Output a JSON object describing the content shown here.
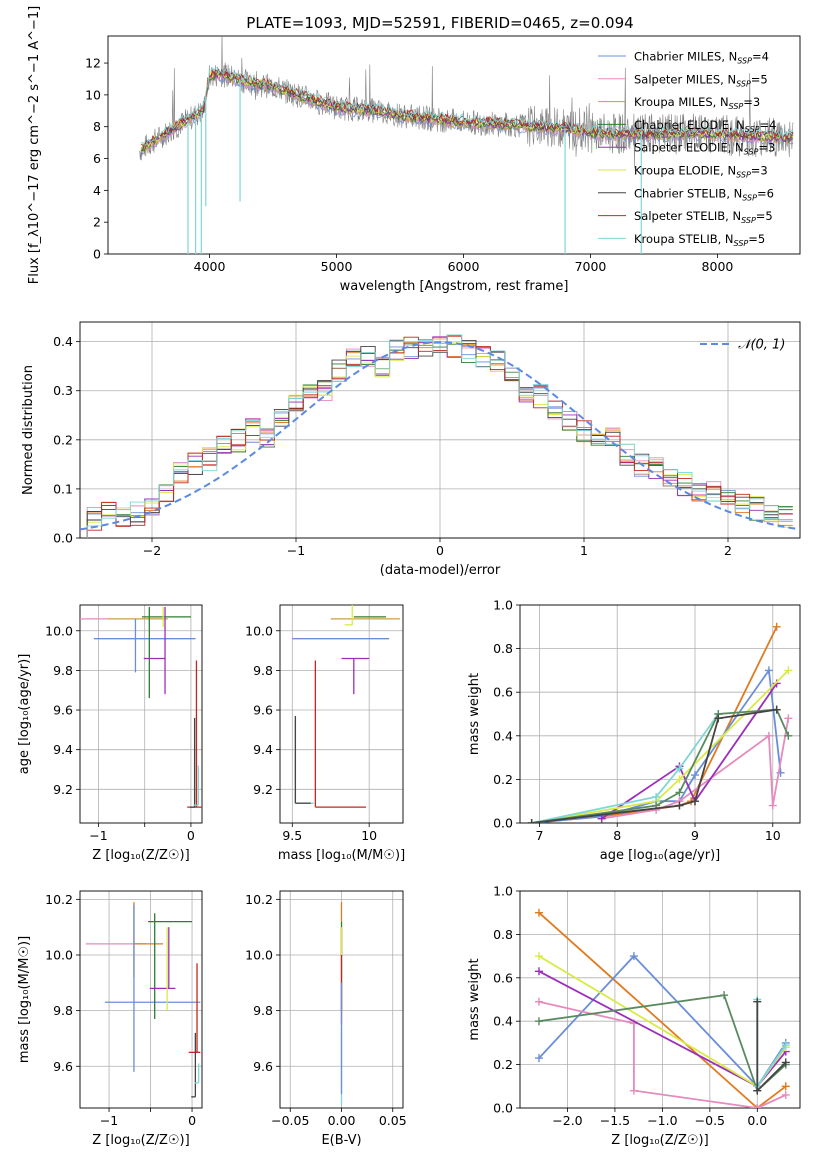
{
  "title": "PLATE=1093, MJD=52591, FIBERID=0465, z=0.094",
  "colors": {
    "chabrier_miles": "#6a8fd8",
    "salpeter_miles": "#e58bbd",
    "kroupa_miles": "#c8a13a",
    "chabrier_elodie": "#2e7d32",
    "salpeter_elodie": "#9b2fb8",
    "kroupa_elodie": "#d9ea44",
    "chabrier_stelib": "#444444",
    "salpeter_stelib": "#c0281e",
    "kroupa_stelib": "#7fd6d6",
    "data": "#808080",
    "orange_line": "#e07b20",
    "sage_line": "#5a8a5f"
  },
  "chart_data": [
    {
      "id": "spectrum",
      "type": "line",
      "xlabel": "wavelength [Angstrom, rest frame]",
      "ylabel": "Flux [f_λ10^−17 erg cm^−2 s^−1 A^−1]",
      "xlim": [
        3200,
        8650
      ],
      "ylim": [
        0,
        13.7
      ],
      "xticks": [
        4000,
        5000,
        6000,
        7000,
        8000
      ],
      "yticks": [
        0,
        2,
        4,
        6,
        8,
        10,
        12
      ],
      "legend_position": "top-right",
      "legend": [
        {
          "label": "Chabrier MILES, N",
          "sub": "SSP",
          "n": "=4",
          "color": "#6a8fd8"
        },
        {
          "label": "Salpeter MILES, N",
          "sub": "SSP",
          "n": "=5",
          "color": "#e58bbd"
        },
        {
          "label": "Kroupa MILES, N",
          "sub": "SSP",
          "n": "=3",
          "color": "#c8a13a"
        },
        {
          "label": "Chabrier ELODIE, N",
          "sub": "SSP",
          "n": "=4",
          "color": "#2e7d32"
        },
        {
          "label": "Salpeter ELODIE, N",
          "sub": "SSP",
          "n": "=3",
          "color": "#9b2fb8"
        },
        {
          "label": "Kroupa ELODIE, N",
          "sub": "SSP",
          "n": "=3",
          "color": "#d9ea44"
        },
        {
          "label": "Chabrier STELIB, N",
          "sub": "SSP",
          "n": "=6",
          "color": "#444444"
        },
        {
          "label": "Salpeter STELIB, N",
          "sub": "SSP",
          "n": "=5",
          "color": "#c0281e"
        },
        {
          "label": "Kroupa STELIB, N",
          "sub": "SSP",
          "n": "=5",
          "color": "#7fd6d6"
        }
      ],
      "continuum": {
        "wavelength": [
          3450,
          3600,
          3800,
          3950,
          4000,
          4100,
          4300,
          4500,
          4800,
          5000,
          5300,
          5600,
          6000,
          6400,
          6800,
          7000,
          7400,
          7800,
          8200,
          8600
        ],
        "flux": [
          6.5,
          7.3,
          8.3,
          9.0,
          11.2,
          11.3,
          10.8,
          10.5,
          9.7,
          9.2,
          9.0,
          8.6,
          8.3,
          8.1,
          7.9,
          7.6,
          7.5,
          7.6,
          7.4,
          7.3
        ]
      },
      "absorption_features": [
        {
          "wavelength": 3830,
          "depth_to": 0
        },
        {
          "wavelength": 3890,
          "depth_to": 0
        },
        {
          "wavelength": 3935,
          "depth_to": 0
        },
        {
          "wavelength": 4240,
          "depth_to": 3.3
        },
        {
          "wavelength": 3970,
          "depth_to": 3.0
        },
        {
          "wavelength": 6800,
          "depth_to": 0
        },
        {
          "wavelength": 7400,
          "depth_to": 0
        }
      ]
    },
    {
      "id": "residuals",
      "type": "bar",
      "xlabel": "(data-model)/error",
      "ylabel": "Normed distribution",
      "xlim": [
        -2.5,
        2.5
      ],
      "ylim": [
        0,
        0.44
      ],
      "xticks": [
        -2,
        -1,
        0,
        1,
        2
      ],
      "yticks": [
        0.0,
        0.1,
        0.2,
        0.3,
        0.4
      ],
      "grid": true,
      "legend_position": "top-right",
      "legend_label": "𝒩(0, 1)",
      "gaussian": {
        "mean": 0,
        "sigma": 1
      },
      "bins": [
        -2.4,
        -2.3,
        -2.2,
        -2.1,
        -2.0,
        -1.9,
        -1.8,
        -1.7,
        -1.6,
        -1.5,
        -1.4,
        -1.3,
        -1.2,
        -1.1,
        -1.0,
        -0.9,
        -0.8,
        -0.7,
        -0.6,
        -0.5,
        -0.4,
        -0.3,
        -0.2,
        -0.1,
        0.0,
        0.1,
        0.2,
        0.3,
        0.4,
        0.5,
        0.6,
        0.7,
        0.8,
        0.9,
        1.0,
        1.1,
        1.2,
        1.3,
        1.4,
        1.5,
        1.6,
        1.7,
        1.8,
        1.9,
        2.0,
        2.1,
        2.2,
        2.3,
        2.4
      ],
      "envelope": [
        0.04,
        0.05,
        0.04,
        0.05,
        0.07,
        0.09,
        0.13,
        0.15,
        0.16,
        0.19,
        0.2,
        0.22,
        0.2,
        0.25,
        0.27,
        0.29,
        0.3,
        0.34,
        0.36,
        0.37,
        0.35,
        0.38,
        0.39,
        0.38,
        0.4,
        0.39,
        0.38,
        0.37,
        0.36,
        0.34,
        0.3,
        0.29,
        0.26,
        0.24,
        0.22,
        0.2,
        0.2,
        0.17,
        0.15,
        0.14,
        0.13,
        0.11,
        0.1,
        0.09,
        0.08,
        0.07,
        0.06,
        0.05,
        0.04
      ]
    },
    {
      "id": "age-vs-Z",
      "type": "scatter",
      "xlabel": "Z [log₁₀(Z/Z☉)]",
      "ylabel": "age  [log₁₀(age/yr)]",
      "xlim": [
        -1.2,
        0.12
      ],
      "ylim": [
        9.03,
        10.13
      ],
      "xticks": [
        -1,
        -0.5,
        0
      ],
      "xticklabels": [
        "−1",
        "",
        "0"
      ],
      "yticks": [
        9.2,
        9.4,
        9.6,
        9.8,
        10.0
      ],
      "grid": true,
      "points": [
        {
          "x": -0.95,
          "y": 10.06,
          "xerr": [
            0.33,
            0.05
          ],
          "yerr": [
            0.0,
            0.0
          ],
          "color": "#e58bbd"
        },
        {
          "x": -0.55,
          "y": 10.06,
          "xerr": [
            0.35,
            0.3
          ],
          "yerr": [
            0.0,
            0.0
          ],
          "color": "#c8a13a"
        },
        {
          "x": -0.6,
          "y": 9.96,
          "xerr": [
            0.45,
            0.65
          ],
          "yerr": [
            0.17,
            0.1
          ],
          "color": "#6a8fd8"
        },
        {
          "x": -0.45,
          "y": 10.07,
          "xerr": [
            0.08,
            0.45
          ],
          "yerr": [
            0.41,
            0.05
          ],
          "color": "#2e7d32"
        },
        {
          "x": -0.28,
          "y": 9.86,
          "xerr": [
            0.23,
            0.0
          ],
          "yerr": [
            0.18,
            0.26
          ],
          "color": "#9b2fb8"
        },
        {
          "x": -0.3,
          "y": 10.02,
          "xerr": [
            0.0,
            0.0
          ],
          "yerr": [
            0.0,
            0.1
          ],
          "color": "#d9ea44"
        },
        {
          "x": 0.06,
          "y": 9.11,
          "xerr": [
            0.1,
            0.08
          ],
          "yerr": [
            0.0,
            0.74
          ],
          "color": "#c0281e"
        },
        {
          "x": 0.04,
          "y": 9.11,
          "xerr": [
            0.05,
            0.0
          ],
          "yerr": [
            0.0,
            0.45
          ],
          "color": "#444444"
        },
        {
          "x": 0.08,
          "y": 9.12,
          "xerr": [
            0.05,
            0.0
          ],
          "yerr": [
            0.0,
            0.2
          ],
          "color": "#7fd6d6"
        }
      ]
    },
    {
      "id": "age-vs-mass",
      "type": "scatter",
      "xlabel": "mass [log₁₀(M/M☉)]",
      "ylabel": "",
      "xlim": [
        9.42,
        10.22
      ],
      "ylim": [
        9.03,
        10.13
      ],
      "xticks": [
        9.5,
        10.0
      ],
      "yticks": [
        9.2,
        9.4,
        9.6,
        9.8,
        10.0
      ],
      "grid": true,
      "points": [
        {
          "x": 10.05,
          "y": 10.06,
          "xerr": [
            0.3,
            0.15
          ],
          "yerr": [
            0.0,
            0.0
          ],
          "color": "#c8a13a"
        },
        {
          "x": 9.95,
          "y": 9.96,
          "xerr": [
            0.45,
            0.18
          ],
          "yerr": [
            0.0,
            0.0
          ],
          "color": "#6a8fd8"
        },
        {
          "x": 10.02,
          "y": 10.07,
          "xerr": [
            0.12,
            0.09
          ],
          "yerr": [
            0.0,
            0.0
          ],
          "color": "#2e7d32"
        },
        {
          "x": 9.9,
          "y": 9.86,
          "xerr": [
            0.08,
            0.1
          ],
          "yerr": [
            0.18,
            0.0
          ],
          "color": "#9b2fb8"
        },
        {
          "x": 9.89,
          "y": 10.03,
          "xerr": [
            0.05,
            0.0
          ],
          "yerr": [
            0.0,
            0.1
          ],
          "color": "#d9ea44"
        },
        {
          "x": 9.65,
          "y": 9.11,
          "xerr": [
            0.0,
            0.33
          ],
          "yerr": [
            0.0,
            0.74
          ],
          "color": "#c0281e"
        },
        {
          "x": 9.52,
          "y": 9.13,
          "xerr": [
            0.0,
            0.12
          ],
          "yerr": [
            0.0,
            0.42
          ],
          "color": "#7fd6d6"
        },
        {
          "x": 9.52,
          "y": 9.13,
          "xerr": [
            0.0,
            0.1
          ],
          "yerr": [
            0.0,
            0.44
          ],
          "color": "#444444"
        }
      ]
    },
    {
      "id": "weight-vs-age",
      "type": "line",
      "xlabel": "age  [log₁₀(age/yr)]",
      "ylabel": "mass weight",
      "xlim": [
        6.75,
        10.35
      ],
      "ylim": [
        0,
        1
      ],
      "xticks": [
        7,
        8,
        9,
        10
      ],
      "yticks": [
        0.0,
        0.2,
        0.4,
        0.6,
        0.8,
        1.0
      ],
      "grid": true,
      "series": [
        {
          "color": "#e07b20",
          "x": [
            6.9,
            7.8,
            8.8,
            8.95,
            10.05
          ],
          "y": [
            0.0,
            0.03,
            0.08,
            0.1,
            0.9
          ]
        },
        {
          "color": "#6a8fd8",
          "x": [
            6.9,
            7.8,
            8.5,
            8.8,
            9.0,
            9.95,
            10.1
          ],
          "y": [
            0.0,
            0.03,
            0.1,
            0.1,
            0.22,
            0.7,
            0.23
          ]
        },
        {
          "color": "#e58bbd",
          "x": [
            7.8,
            8.5,
            8.8,
            9.95,
            10.0,
            10.2
          ],
          "y": [
            0.02,
            0.06,
            0.1,
            0.4,
            0.08,
            0.48
          ]
        },
        {
          "color": "#9b2fb8",
          "x": [
            7.8,
            8.8,
            9.0,
            10.05
          ],
          "y": [
            0.02,
            0.26,
            0.1,
            0.64
          ]
        },
        {
          "color": "#d9ea44",
          "x": [
            6.9,
            8.5,
            8.8,
            10.2
          ],
          "y": [
            0.0,
            0.1,
            0.2,
            0.7
          ]
        },
        {
          "color": "#7fd6d6",
          "x": [
            6.9,
            8.5,
            8.8,
            9.3
          ],
          "y": [
            0.0,
            0.12,
            0.25,
            0.5
          ]
        },
        {
          "color": "#5a8a5f",
          "x": [
            6.9,
            8.5,
            8.8,
            9.3,
            10.05,
            10.2
          ],
          "y": [
            0.0,
            0.08,
            0.14,
            0.5,
            0.52,
            0.4
          ]
        },
        {
          "color": "#444444",
          "x": [
            6.9,
            8.8,
            9.0,
            9.3,
            10.05
          ],
          "y": [
            0.0,
            0.08,
            0.1,
            0.48,
            0.52
          ]
        }
      ]
    },
    {
      "id": "mass-vs-Z",
      "type": "scatter",
      "xlabel": "Z [log₁₀(Z/Z☉)]",
      "ylabel": "mass [log₁₀(M/M☉)]",
      "xlim": [
        -1.35,
        0.12
      ],
      "ylim": [
        9.45,
        10.23
      ],
      "xticks": [
        -1,
        -0.5,
        0
      ],
      "xticklabels": [
        "−1",
        "",
        "0"
      ],
      "yticks": [
        9.6,
        9.8,
        10.0,
        10.2
      ],
      "grid": true,
      "points": [
        {
          "x": -0.95,
          "y": 10.04,
          "xerr": [
            0.33,
            0.4
          ],
          "yerr": [
            0.0,
            0.0
          ],
          "color": "#e58bbd"
        },
        {
          "x": -0.7,
          "y": 10.04,
          "xerr": [
            0.0,
            0.35
          ],
          "yerr": [
            0.12,
            0.15
          ],
          "color": "#e07b20"
        },
        {
          "x": -0.7,
          "y": 9.83,
          "xerr": [
            0.35,
            0.8
          ],
          "yerr": [
            0.25,
            0.35
          ],
          "color": "#6a8fd8"
        },
        {
          "x": -0.45,
          "y": 10.12,
          "xerr": [
            0.08,
            0.45
          ],
          "yerr": [
            0.35,
            0.03
          ],
          "color": "#2e7d32"
        },
        {
          "x": -0.28,
          "y": 9.88,
          "xerr": [
            0.23,
            0.08
          ],
          "yerr": [
            0.0,
            0.22
          ],
          "color": "#9b2fb8"
        },
        {
          "x": -0.3,
          "y": 10.0,
          "xerr": [
            0.0,
            0.0
          ],
          "yerr": [
            0.2,
            0.1
          ],
          "color": "#d9ea44"
        },
        {
          "x": 0.06,
          "y": 9.65,
          "xerr": [
            0.1,
            0.04
          ],
          "yerr": [
            0.0,
            0.32
          ],
          "color": "#c0281e"
        },
        {
          "x": 0.04,
          "y": 9.49,
          "xerr": [
            0.05,
            0.0
          ],
          "yerr": [
            0.0,
            0.23
          ],
          "color": "#444444"
        },
        {
          "x": 0.08,
          "y": 9.54,
          "xerr": [
            0.05,
            0.0
          ],
          "yerr": [
            0.0,
            0.07
          ],
          "color": "#7fd6d6"
        }
      ]
    },
    {
      "id": "mass-vs-EBV",
      "type": "scatter",
      "xlabel": "E(B-V)",
      "ylabel": "",
      "xlim": [
        -0.06,
        0.06
      ],
      "ylim": [
        9.45,
        10.23
      ],
      "xticks": [
        -0.05,
        0.0,
        0.05
      ],
      "xticklabels": [
        "−0.05",
        "0.00",
        "0.05"
      ],
      "yticks": [
        9.6,
        9.8,
        10.0,
        10.2
      ],
      "grid": true,
      "points": [
        {
          "x": 0.0,
          "y": 10.12,
          "xerr": [
            0,
            0
          ],
          "yerr": [
            0.0,
            0.07
          ],
          "color": "#e07b20"
        },
        {
          "x": 0.0,
          "y": 10.0,
          "xerr": [
            0,
            0
          ],
          "yerr": [
            0.2,
            0.12
          ],
          "color": "#2e7d32"
        },
        {
          "x": 0.0,
          "y": 9.9,
          "xerr": [
            0,
            0
          ],
          "yerr": [
            0.15,
            0.2
          ],
          "color": "#c0281e"
        },
        {
          "x": 0.0,
          "y": 9.6,
          "xerr": [
            0,
            0
          ],
          "yerr": [
            0.14,
            0.14
          ],
          "color": "#7fd6d6"
        },
        {
          "x": 0.0,
          "y": 9.7,
          "xerr": [
            0,
            0
          ],
          "yerr": [
            0.2,
            0.2
          ],
          "color": "#6a8fd8"
        },
        {
          "x": 0.0,
          "y": 10.05,
          "xerr": [
            0,
            0
          ],
          "yerr": [
            0.05,
            0.05
          ],
          "color": "#d9ea44"
        }
      ]
    },
    {
      "id": "weight-vs-Z",
      "type": "line",
      "xlabel": "Z [log₁₀(Z/Z☉)]",
      "ylabel": "mass weight",
      "xlim": [
        -2.5,
        0.45
      ],
      "ylim": [
        0,
        1
      ],
      "xticks": [
        -2.0,
        -1.5,
        -1.0,
        -0.5,
        0.0
      ],
      "xticklabels": [
        "−2.0",
        "−1.5",
        "−1.0",
        "−0.5",
        "0.0"
      ],
      "yticks": [
        0.0,
        0.2,
        0.4,
        0.6,
        0.8,
        1.0
      ],
      "grid": true,
      "series": [
        {
          "color": "#e07b20",
          "x": [
            -2.3,
            0.0,
            0.3
          ],
          "y": [
            0.9,
            0.0,
            0.1
          ]
        },
        {
          "color": "#6a8fd8",
          "x": [
            -2.3,
            -1.3,
            0.0,
            0.3
          ],
          "y": [
            0.23,
            0.7,
            0.1,
            0.3
          ]
        },
        {
          "color": "#e58bbd",
          "x": [
            -2.3,
            -1.3,
            -1.3,
            0.0,
            0.3
          ],
          "y": [
            0.49,
            0.39,
            0.08,
            0.0,
            0.06
          ]
        },
        {
          "color": "#9b2fb8",
          "x": [
            -2.3,
            0.0,
            0.3
          ],
          "y": [
            0.63,
            0.1,
            0.26
          ]
        },
        {
          "color": "#d9ea44",
          "x": [
            -2.3,
            0.0,
            0.3
          ],
          "y": [
            0.7,
            0.1,
            0.28
          ]
        },
        {
          "color": "#5a8a5f",
          "x": [
            -2.3,
            -0.35,
            0.0,
            0.3
          ],
          "y": [
            0.4,
            0.52,
            0.08,
            0.2
          ]
        },
        {
          "color": "#7fd6d6",
          "x": [
            0.0,
            0.0,
            0.3
          ],
          "y": [
            0.5,
            0.1,
            0.29
          ]
        },
        {
          "color": "#444444",
          "x": [
            0.0,
            0.0,
            0.3
          ],
          "y": [
            0.49,
            0.08,
            0.21
          ]
        }
      ]
    }
  ]
}
